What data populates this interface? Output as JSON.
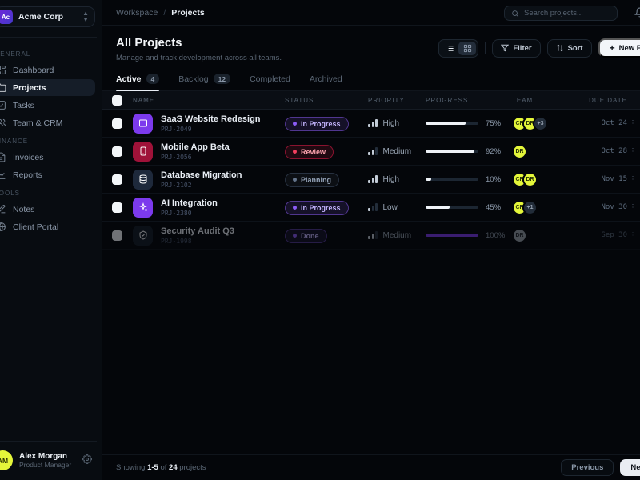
{
  "workspace": {
    "name": "Acme Corp",
    "logo_initials": "Ac"
  },
  "sidebar": {
    "sections": [
      {
        "label": "General",
        "items": [
          {
            "label": "Dashboard",
            "icon": "dashboard",
            "active": false
          },
          {
            "label": "Projects",
            "icon": "projects",
            "active": true
          },
          {
            "label": "Tasks",
            "icon": "tasks",
            "active": false
          },
          {
            "label": "Team & CRM",
            "icon": "team",
            "active": false
          }
        ]
      },
      {
        "label": "Finance",
        "items": [
          {
            "label": "Invoices",
            "icon": "invoices",
            "active": false
          },
          {
            "label": "Reports",
            "icon": "reports",
            "active": false
          }
        ]
      },
      {
        "label": "Tools",
        "items": [
          {
            "label": "Notes",
            "icon": "notes",
            "active": false
          },
          {
            "label": "Client Portal",
            "icon": "portal",
            "active": false
          }
        ]
      }
    ],
    "user": {
      "name": "Alex Morgan",
      "role": "Product Manager",
      "initials": "AM"
    }
  },
  "topbar": {
    "breadcrumb": {
      "parent": "Workspace",
      "separator": "/",
      "current": "Projects"
    },
    "search_placeholder": "Search projects..."
  },
  "page": {
    "title": "All Projects",
    "subtitle": "Manage and track development across all teams.",
    "filter_label": "Filter",
    "sort_label": "Sort",
    "new_project_label": "New Project"
  },
  "tabs": [
    {
      "label": "Active",
      "count": "4",
      "active": true
    },
    {
      "label": "Backlog",
      "count": "12",
      "active": false
    },
    {
      "label": "Completed",
      "count": "",
      "active": false
    },
    {
      "label": "Archived",
      "count": "",
      "active": false
    }
  ],
  "table": {
    "columns": [
      "Name",
      "Status",
      "Priority",
      "Progress",
      "Team",
      "Due Date"
    ],
    "rows": [
      {
        "name": "SaaS Website Redesign",
        "id": "PRJ-2049",
        "icon": "browser",
        "icon_bg": "#7c3aed",
        "status": "In Progress",
        "status_type": "purple",
        "priority": "High",
        "priority_level": 3,
        "progress": 75,
        "progress_color": "white",
        "team": [
          "CR",
          "DR"
        ],
        "team_extra": "+3",
        "due": "Oct 24",
        "dim": false
      },
      {
        "name": "Mobile App Beta",
        "id": "PRJ-2056",
        "icon": "phone",
        "icon_bg": "#9f1239",
        "status": "Review",
        "status_type": "red",
        "priority": "Medium",
        "priority_level": 2,
        "progress": 92,
        "progress_color": "white",
        "team": [
          "DR"
        ],
        "team_extra": "",
        "due": "Oct 28",
        "dim": false
      },
      {
        "name": "Database Migration",
        "id": "PRJ-2102",
        "icon": "database",
        "icon_bg": "#1e293b",
        "status": "Planning",
        "status_type": "slate",
        "priority": "High",
        "priority_level": 3,
        "progress": 10,
        "progress_color": "white",
        "team": [
          "CR",
          "DR"
        ],
        "team_extra": "",
        "due": "Nov 15",
        "dim": false
      },
      {
        "name": "AI Integration",
        "id": "PRJ-2380",
        "icon": "sparkles",
        "icon_bg": "#7c3aed",
        "status": "In Progress",
        "status_type": "purple",
        "priority": "Low",
        "priority_level": 1,
        "progress": 45,
        "progress_color": "white",
        "team": [
          "CR"
        ],
        "team_extra": "+1",
        "due": "Nov 30",
        "dim": false
      },
      {
        "name": "Security Audit Q3",
        "id": "PRJ-1998",
        "icon": "shield",
        "icon_bg": "#151d28",
        "status": "Done",
        "status_type": "purple",
        "priority": "Medium",
        "priority_level": 2,
        "progress": 100,
        "progress_color": "purple",
        "team": [
          "DR"
        ],
        "team_extra": "",
        "due": "Sep 30",
        "dim": true
      }
    ]
  },
  "footer": {
    "showing_prefix": "Showing",
    "range": "1-5",
    "of_word": "of",
    "total": "24",
    "suffix": "projects",
    "previous_label": "Previous",
    "next_label": "Next"
  },
  "colors": {
    "accent_purple": "#7c3aed",
    "accent_red": "#9f1239",
    "avatar_yellow": "#e4f63a",
    "progress_done": "#7c3aed",
    "primary_button": "#f3f6f9"
  }
}
